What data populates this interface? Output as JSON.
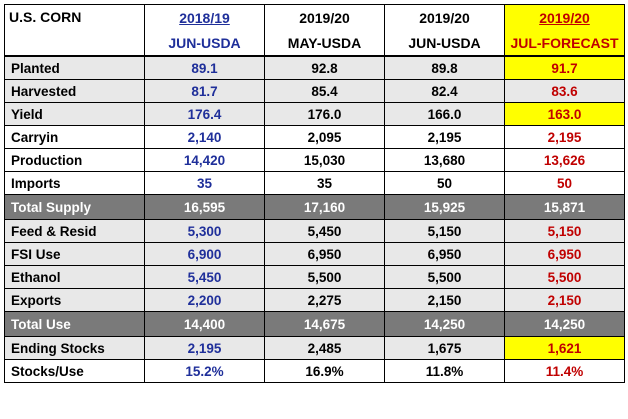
{
  "title": "U.S. CORN",
  "columns": [
    {
      "year": "2018/19",
      "source": "JUN-USDA"
    },
    {
      "year": "2019/20",
      "source": "MAY-USDA"
    },
    {
      "year": "2019/20",
      "source": "JUN-USDA"
    },
    {
      "year": "2019/20",
      "source": "JUL-FORECAST"
    }
  ],
  "rows": [
    {
      "label": "Planted",
      "values": [
        "89.1",
        "92.8",
        "89.8",
        "91.7"
      ]
    },
    {
      "label": "Harvested",
      "values": [
        "81.7",
        "85.4",
        "82.4",
        "83.6"
      ]
    },
    {
      "label": "Yield",
      "values": [
        "176.4",
        "176.0",
        "166.0",
        "163.0"
      ]
    },
    {
      "label": "Carryin",
      "values": [
        "2,140",
        "2,095",
        "2,195",
        "2,195"
      ]
    },
    {
      "label": "Production",
      "values": [
        "14,420",
        "15,030",
        "13,680",
        "13,626"
      ]
    },
    {
      "label": "Imports",
      "values": [
        "35",
        "35",
        "50",
        "50"
      ]
    },
    {
      "label": "Total Supply",
      "values": [
        "16,595",
        "17,160",
        "15,925",
        "15,871"
      ]
    },
    {
      "label": "Feed & Resid",
      "values": [
        "5,300",
        "5,450",
        "5,150",
        "5,150"
      ]
    },
    {
      "label": "FSI Use",
      "values": [
        "6,900",
        "6,950",
        "6,950",
        "6,950"
      ]
    },
    {
      "label": "Ethanol",
      "values": [
        "5,450",
        "5,500",
        "5,500",
        "5,500"
      ]
    },
    {
      "label": "Exports",
      "values": [
        "2,200",
        "2,275",
        "2,150",
        "2,150"
      ]
    },
    {
      "label": "Total Use",
      "values": [
        "14,400",
        "14,675",
        "14,250",
        "14,250"
      ]
    },
    {
      "label": "Ending Stocks",
      "values": [
        "2,195",
        "2,485",
        "1,675",
        "1,621"
      ]
    },
    {
      "label": "Stocks/Use",
      "values": [
        "15.2%",
        "16.9%",
        "11.8%",
        "11.4%"
      ]
    }
  ],
  "colors": {
    "col1_text": "#1f2f9a",
    "forecast_text": "#c00000",
    "highlight": "#ffff00",
    "total_row_bg": "#7a7a7a",
    "band_bg": "#e8e8e8"
  }
}
